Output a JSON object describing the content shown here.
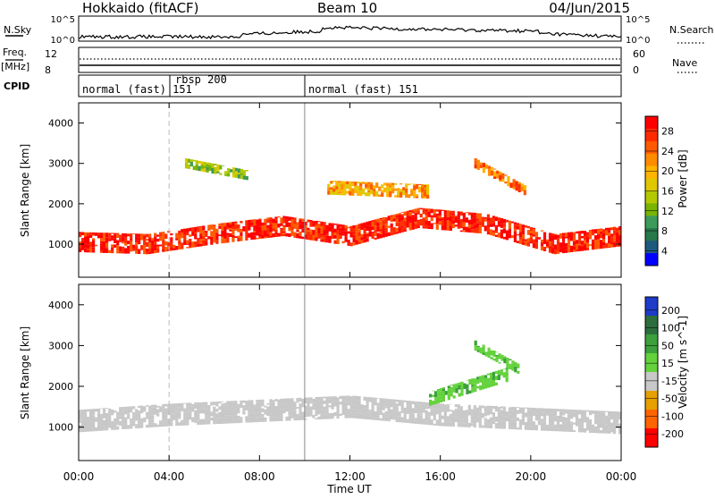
{
  "header": {
    "title": "Hokkaido (fitACF)",
    "beam": "Beam 10",
    "date": "04/Jun/2015"
  },
  "nsky_panel": {
    "left_label": "N.Sky",
    "right_label": "N.Search",
    "left_ticks": [
      "10^5",
      "10^0"
    ],
    "right_ticks": [
      "10^5",
      "10^0"
    ]
  },
  "freq_panel": {
    "left_label_1": "Freq.",
    "left_label_2": "[MHz]",
    "right_label": "Nave",
    "left_ticks": [
      "12",
      "8"
    ],
    "right_ticks": [
      "60",
      "0"
    ]
  },
  "cpid_panel": {
    "label": "CPID",
    "modes": [
      "normal (fast) 151",
      "rbsp 200",
      "normal (fast) 151"
    ]
  },
  "x_axis": {
    "label": "Time UT",
    "ticks": [
      "00:00",
      "04:00",
      "08:00",
      "12:00",
      "16:00",
      "20:00",
      "00:00"
    ]
  },
  "power_panel": {
    "ylabel": "Slant Range [km]",
    "yticks": [
      "4000",
      "3000",
      "2000",
      "1000"
    ],
    "colorbar_label": "Power [dB]",
    "colorbar_ticks": [
      "28",
      "24",
      "20",
      "16",
      "12",
      "8",
      "4"
    ],
    "colors": [
      "#ff0000",
      "#ff2a00",
      "#ff5a00",
      "#ff8c00",
      "#ffb400",
      "#e0c800",
      "#b4c800",
      "#78b400",
      "#3c9b5a",
      "#28784b",
      "#1e5a7d",
      "#0000ff"
    ]
  },
  "velocity_panel": {
    "ylabel": "Slant Range [km]",
    "yticks": [
      "4000",
      "3000",
      "2000",
      "1000"
    ],
    "colorbar_label": "Velocity [m s^-1]",
    "colorbar_ticks": [
      "200",
      "100",
      "50",
      "15",
      "-15",
      "-50",
      "-100",
      "-200"
    ],
    "colors": [
      "#1e3cc8",
      "#2d6e3c",
      "#3ca03c",
      "#64d23c",
      "#c8c8c8",
      "#e6a000",
      "#ff6400",
      "#ff0000"
    ],
    "ground_scatter_color": "#c8c8c8"
  },
  "chart_data": {
    "type": "heatmap",
    "x_range_hours": [
      0,
      24
    ],
    "y_range_km": [
      180,
      4500
    ],
    "power_bands": [
      {
        "t_start": 0,
        "t_end": 24,
        "center_km": [
          1050,
          1000,
          1250,
          1450,
          1200,
          1650,
          1500,
          1000,
          1200
        ],
        "width_km": 500,
        "value_db": 28
      },
      {
        "t_start": 4.7,
        "t_end": 7.5,
        "center_km": [
          3000,
          2700
        ],
        "width_km": 250,
        "value_db": 12
      },
      {
        "t_start": 11,
        "t_end": 15.5,
        "center_km": [
          2400,
          2300
        ],
        "width_km": 350,
        "value_db": 20
      },
      {
        "t_start": 17.5,
        "t_end": 19.8,
        "center_km": [
          3000,
          2300
        ],
        "width_km": 250,
        "value_db": 24
      }
    ],
    "velocity_bands": [
      {
        "t_start": 0,
        "t_end": 24,
        "center_km": [
          1150,
          1300,
          1400,
          1500,
          1300,
          1200,
          1100
        ],
        "width_km": 550,
        "value_ms": 0
      },
      {
        "t_start": 15.5,
        "t_end": 19,
        "center_km": [
          1700,
          2300
        ],
        "width_km": 350,
        "value_ms": 30
      },
      {
        "t_start": 17.5,
        "t_end": 19.5,
        "center_km": [
          3000,
          2400
        ],
        "width_km": 250,
        "value_ms": 40
      }
    ],
    "mode_change_hours": [
      4.0,
      10.0
    ]
  }
}
